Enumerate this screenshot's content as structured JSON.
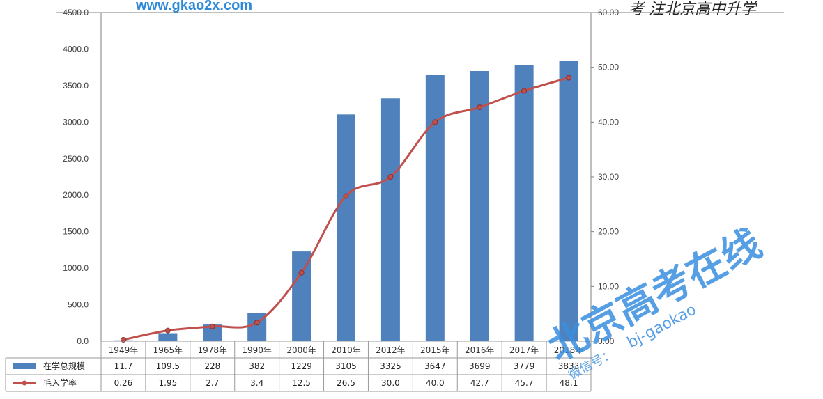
{
  "chart_data": {
    "type": "bar",
    "categories": [
      "1949年",
      "1965年",
      "1978年",
      "1990年",
      "2000年",
      "2010年",
      "2012年",
      "2015年",
      "2016年",
      "2017年",
      "2018年"
    ],
    "series": [
      {
        "name": "在学总规模",
        "type": "bar",
        "axis": "left",
        "color": "#4f81bd",
        "values": [
          11.7,
          109.5,
          228,
          382,
          1229,
          3105,
          3325,
          3647,
          3699,
          3779,
          3833
        ],
        "labels": [
          "11.7",
          "109.5",
          "228",
          "382",
          "1229",
          "3105",
          "3325",
          "3647",
          "3699",
          "3779",
          "3833"
        ]
      },
      {
        "name": "毛入学率",
        "type": "line",
        "axis": "right",
        "color": "#c0504d",
        "values": [
          0.26,
          1.95,
          2.7,
          3.4,
          12.5,
          26.5,
          30.0,
          40.0,
          42.7,
          45.7,
          48.1
        ],
        "labels": [
          "0.26",
          "1.95",
          "2.7",
          "3.4",
          "12.5",
          "26.5",
          "30.0",
          "40.0",
          "42.7",
          "45.7",
          "48.1"
        ]
      }
    ],
    "y_left": {
      "ylim": [
        0,
        4500
      ],
      "ticks": [
        "0.0",
        "500.0",
        "1000.0",
        "1500.0",
        "2000.0",
        "2500.0",
        "3000.0",
        "3500.0",
        "4000.0",
        "4500.0"
      ]
    },
    "y_right": {
      "ylim": [
        0,
        60
      ],
      "ticks": [
        "0.00",
        "10.00",
        "20.00",
        "30.00",
        "40.00",
        "50.00",
        "60.00"
      ]
    },
    "data_table": true,
    "grid": false
  },
  "watermarks": {
    "url": "www.gkao2x.com",
    "top_right": "考 注北京高中升学",
    "big": "北京高考在线",
    "small": "bj-gaokao",
    "sub": "微信号："
  }
}
